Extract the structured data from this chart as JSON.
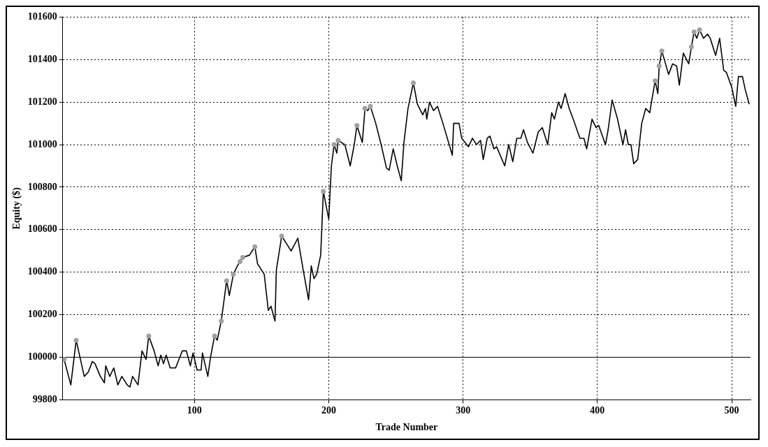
{
  "chart_data": {
    "type": "line",
    "xlabel": "Trade Number",
    "ylabel": "Equity ($)",
    "xlim": [
      2,
      514
    ],
    "xticks": [
      100,
      200,
      300,
      400,
      500
    ],
    "ylim": [
      99800,
      101600
    ],
    "yticks": [
      99800,
      100000,
      100200,
      100400,
      100600,
      100800,
      101000,
      101200,
      101400,
      101600
    ],
    "grid": true,
    "legend": false,
    "ref_lines": [
      {
        "axis": "y",
        "value": 100000,
        "color": "#000000",
        "line_style": "solid"
      }
    ],
    "series": [
      {
        "color": "#000000",
        "marker": "none",
        "line_style": "solid",
        "x": [
          3,
          8,
          12,
          18,
          21,
          24,
          26,
          30,
          33,
          34,
          37,
          40,
          43,
          46,
          50,
          52,
          54,
          58,
          61,
          64,
          66,
          70,
          73,
          75,
          77,
          79,
          82,
          86,
          91,
          94,
          97,
          99,
          102,
          105,
          106,
          110,
          112,
          115,
          117,
          120,
          124,
          126,
          129,
          132,
          134,
          136,
          141,
          145,
          147,
          152,
          155,
          157,
          160,
          161,
          165,
          169,
          172,
          177,
          181,
          185,
          187,
          189,
          191,
          194,
          196,
          200,
          202,
          204,
          206,
          207,
          212,
          216,
          219,
          221,
          225,
          227,
          229,
          231,
          235,
          239,
          243,
          245,
          248,
          251,
          254,
          256,
          259,
          263,
          266,
          270,
          272,
          273,
          275,
          278,
          281,
          285,
          292,
          293,
          297,
          299,
          304,
          307,
          310,
          313,
          315,
          318,
          320,
          323,
          325,
          331,
          334,
          337,
          340,
          343,
          345,
          348,
          352,
          356,
          359,
          363,
          366,
          368,
          371,
          373,
          376,
          379,
          382,
          387,
          390,
          392,
          396,
          399,
          401,
          406,
          408,
          411,
          415,
          419,
          421,
          423,
          425,
          427,
          430,
          433,
          436,
          439,
          440,
          443,
          445,
          446,
          448,
          453,
          456,
          459,
          461,
          464,
          468,
          470,
          472,
          474,
          476,
          479,
          482,
          484,
          488,
          491,
          494,
          496,
          500,
          503,
          505,
          508,
          510,
          513
        ],
        "values": [
          99990,
          99870,
          100080,
          99910,
          99930,
          99980,
          99970,
          99910,
          99880,
          99960,
          99910,
          99950,
          99870,
          99910,
          99870,
          99860,
          99910,
          99870,
          100030,
          99990,
          100100,
          100030,
          99960,
          100010,
          99970,
          100010,
          99950,
          99950,
          100030,
          100030,
          99960,
          100020,
          99940,
          99940,
          100020,
          99910,
          100000,
          100100,
          100080,
          100170,
          100360,
          100290,
          100390,
          100430,
          100450,
          100470,
          100480,
          100520,
          100440,
          100390,
          100220,
          100240,
          100170,
          100410,
          100570,
          100530,
          100500,
          100560,
          100410,
          100270,
          100430,
          100370,
          100390,
          100480,
          100780,
          100650,
          100900,
          101000,
          100960,
          101020,
          101000,
          100900,
          101000,
          101090,
          101010,
          101170,
          101160,
          101180,
          101100,
          101000,
          100890,
          100880,
          100980,
          100900,
          100830,
          101010,
          101170,
          101290,
          101190,
          101140,
          101170,
          101120,
          101200,
          101160,
          101180,
          101100,
          100950,
          101100,
          101100,
          101030,
          100990,
          101030,
          101000,
          101020,
          100930,
          101030,
          101040,
          100980,
          100990,
          100900,
          101000,
          100920,
          101030,
          101030,
          101070,
          101010,
          100960,
          101060,
          101080,
          101000,
          101150,
          101120,
          101200,
          101170,
          101240,
          101170,
          101120,
          101030,
          101030,
          100980,
          101120,
          101080,
          101090,
          101000,
          101070,
          101210,
          101120,
          101000,
          101070,
          101000,
          101000,
          100910,
          100930,
          101100,
          101170,
          101150,
          101190,
          101300,
          101240,
          101370,
          101440,
          101330,
          101380,
          101370,
          101280,
          101430,
          101380,
          101460,
          101530,
          101500,
          101540,
          101500,
          101520,
          101500,
          101420,
          101500,
          101350,
          101340,
          101270,
          101180,
          101320,
          101320,
          101260,
          101190
        ]
      },
      {
        "type": "scatter",
        "color": "#a0a0a0",
        "marker": "circle",
        "x": [
          3,
          12,
          66,
          115,
          120,
          124,
          129,
          134,
          136,
          145,
          165,
          196,
          204,
          207,
          221,
          227,
          231,
          263,
          443,
          446,
          448,
          470,
          472,
          476
        ],
        "values": [
          99990,
          100080,
          100100,
          100100,
          100170,
          100360,
          100390,
          100450,
          100470,
          100520,
          100570,
          100780,
          101000,
          101020,
          101090,
          101170,
          101180,
          101290,
          101300,
          101370,
          101440,
          101460,
          101530,
          101540
        ]
      }
    ]
  }
}
